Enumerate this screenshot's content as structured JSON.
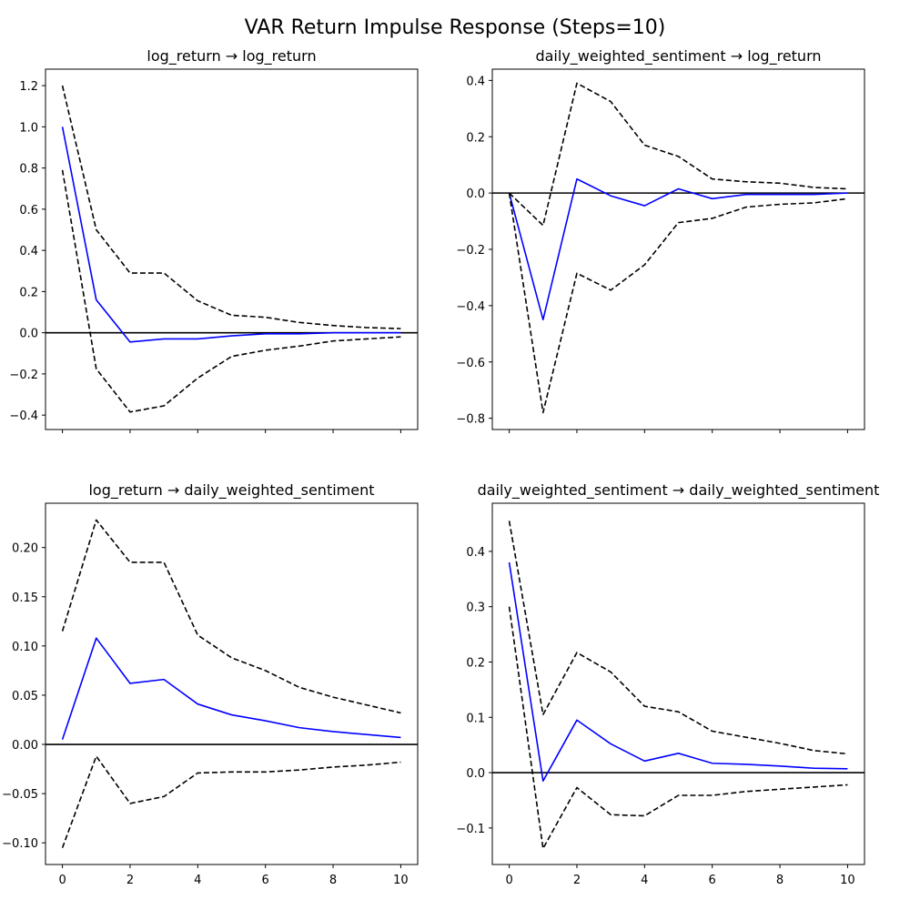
{
  "figure": {
    "suptitle": "VAR Return Impulse Response (Steps=10)"
  },
  "chart_data": [
    {
      "type": "line",
      "title": "log_return → log_return",
      "xlabel": "",
      "ylabel": "",
      "x": [
        0,
        1,
        2,
        3,
        4,
        5,
        6,
        7,
        8,
        9,
        10
      ],
      "xlim": [
        -0.5,
        10.5
      ],
      "ylim": [
        -0.47,
        1.28
      ],
      "xticks": [
        0,
        2,
        4,
        6,
        8,
        10
      ],
      "show_xtick_labels": false,
      "yticks": [
        -0.4,
        -0.2,
        0.0,
        0.2,
        0.4,
        0.6,
        0.8,
        1.0,
        1.2
      ],
      "ytick_labels": [
        "−0.4",
        "−0.2",
        "0.0",
        "0.2",
        "0.4",
        "0.6",
        "0.8",
        "1.0",
        "1.2"
      ],
      "grid": false,
      "zero_line": true,
      "series": [
        {
          "role": "response",
          "color": "#0000ff",
          "style": "solid",
          "values": [
            1.0,
            0.16,
            -0.045,
            -0.03,
            -0.03,
            -0.015,
            -0.005,
            -0.005,
            0.0,
            0.0,
            0.0
          ]
        },
        {
          "role": "upper",
          "color": "#000000",
          "style": "dashed",
          "values": [
            1.2,
            0.5,
            0.29,
            0.29,
            0.155,
            0.085,
            0.075,
            0.05,
            0.035,
            0.025,
            0.02
          ]
        },
        {
          "role": "lower",
          "color": "#000000",
          "style": "dashed",
          "values": [
            0.79,
            -0.175,
            -0.385,
            -0.355,
            -0.22,
            -0.115,
            -0.085,
            -0.065,
            -0.04,
            -0.03,
            -0.02
          ]
        }
      ]
    },
    {
      "type": "line",
      "title": "daily_weighted_sentiment → log_return",
      "xlabel": "",
      "ylabel": "",
      "x": [
        0,
        1,
        2,
        3,
        4,
        5,
        6,
        7,
        8,
        9,
        10
      ],
      "xlim": [
        -0.5,
        10.5
      ],
      "ylim": [
        -0.84,
        0.44
      ],
      "xticks": [
        0,
        2,
        4,
        6,
        8,
        10
      ],
      "show_xtick_labels": false,
      "yticks": [
        -0.8,
        -0.6,
        -0.4,
        -0.2,
        0.0,
        0.2,
        0.4
      ],
      "ytick_labels": [
        "−0.8",
        "−0.6",
        "−0.4",
        "−0.2",
        "0.0",
        "0.2",
        "0.4"
      ],
      "grid": false,
      "zero_line": true,
      "series": [
        {
          "role": "response",
          "color": "#0000ff",
          "style": "solid",
          "values": [
            0.0,
            -0.45,
            0.05,
            -0.01,
            -0.045,
            0.015,
            -0.02,
            -0.005,
            -0.005,
            -0.005,
            0.0
          ]
        },
        {
          "role": "upper",
          "color": "#000000",
          "style": "dashed",
          "values": [
            0.0,
            -0.115,
            0.39,
            0.325,
            0.17,
            0.13,
            0.05,
            0.04,
            0.035,
            0.02,
            0.015
          ]
        },
        {
          "role": "lower",
          "color": "#000000",
          "style": "dashed",
          "values": [
            0.0,
            -0.78,
            -0.285,
            -0.345,
            -0.255,
            -0.105,
            -0.09,
            -0.05,
            -0.04,
            -0.035,
            -0.02
          ]
        }
      ]
    },
    {
      "type": "line",
      "title": "log_return → daily_weighted_sentiment",
      "xlabel": "",
      "ylabel": "",
      "x": [
        0,
        1,
        2,
        3,
        4,
        5,
        6,
        7,
        8,
        9,
        10
      ],
      "xlim": [
        -0.5,
        10.5
      ],
      "ylim": [
        -0.122,
        0.245
      ],
      "xticks": [
        0,
        2,
        4,
        6,
        8,
        10
      ],
      "xtick_labels": [
        "0",
        "2",
        "4",
        "6",
        "8",
        "10"
      ],
      "show_xtick_labels": true,
      "yticks": [
        -0.1,
        -0.05,
        0.0,
        0.05,
        0.1,
        0.15,
        0.2
      ],
      "ytick_labels": [
        "−0.10",
        "−0.05",
        "0.00",
        "0.05",
        "0.10",
        "0.15",
        "0.20"
      ],
      "grid": false,
      "zero_line": true,
      "series": [
        {
          "role": "response",
          "color": "#0000ff",
          "style": "solid",
          "values": [
            0.005,
            0.108,
            0.062,
            0.066,
            0.041,
            0.03,
            0.024,
            0.017,
            0.013,
            0.01,
            0.007
          ]
        },
        {
          "role": "upper",
          "color": "#000000",
          "style": "dashed",
          "values": [
            0.115,
            0.228,
            0.185,
            0.185,
            0.111,
            0.088,
            0.075,
            0.058,
            0.048,
            0.04,
            0.032
          ]
        },
        {
          "role": "lower",
          "color": "#000000",
          "style": "dashed",
          "values": [
            -0.105,
            -0.012,
            -0.06,
            -0.053,
            -0.029,
            -0.028,
            -0.028,
            -0.026,
            -0.023,
            -0.021,
            -0.018
          ]
        }
      ]
    },
    {
      "type": "line",
      "title": "daily_weighted_sentiment → daily_weighted_sentiment",
      "xlabel": "",
      "ylabel": "",
      "x": [
        0,
        1,
        2,
        3,
        4,
        5,
        6,
        7,
        8,
        9,
        10
      ],
      "xlim": [
        -0.5,
        10.5
      ],
      "ylim": [
        -0.166,
        0.487
      ],
      "xticks": [
        0,
        2,
        4,
        6,
        8,
        10
      ],
      "xtick_labels": [
        "0",
        "2",
        "4",
        "6",
        "8",
        "10"
      ],
      "show_xtick_labels": true,
      "yticks": [
        -0.1,
        0.0,
        0.1,
        0.2,
        0.3,
        0.4
      ],
      "ytick_labels": [
        "−0.1",
        "0.0",
        "0.1",
        "0.2",
        "0.3",
        "0.4"
      ],
      "grid": false,
      "zero_line": true,
      "series": [
        {
          "role": "response",
          "color": "#0000ff",
          "style": "solid",
          "values": [
            0.38,
            -0.015,
            0.095,
            0.052,
            0.021,
            0.035,
            0.017,
            0.015,
            0.012,
            0.008,
            0.007
          ]
        },
        {
          "role": "upper",
          "color": "#000000",
          "style": "dashed",
          "values": [
            0.455,
            0.105,
            0.217,
            0.182,
            0.12,
            0.11,
            0.075,
            0.064,
            0.053,
            0.04,
            0.034
          ]
        },
        {
          "role": "lower",
          "color": "#000000",
          "style": "dashed",
          "values": [
            0.3,
            -0.137,
            -0.027,
            -0.076,
            -0.078,
            -0.041,
            -0.041,
            -0.034,
            -0.03,
            -0.026,
            -0.022
          ]
        }
      ]
    }
  ]
}
